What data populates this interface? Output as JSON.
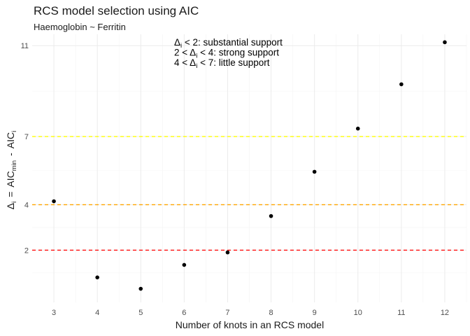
{
  "chart_data": {
    "type": "scatter",
    "title": "RCS model selection using AIC",
    "subtitle": "Haemoglobin ~ Ferritin",
    "xlabel": "Number of knots in an RCS model",
    "ylabel": {
      "delta": "Δ",
      "sub_i": "i",
      "equals": "=",
      "aic": "AIC",
      "sub_min": "min",
      "minus": "-",
      "sub_i2": "i"
    },
    "x_ticks": [
      "3",
      "4",
      "5",
      "6",
      "7",
      "8",
      "9",
      "10",
      "11",
      "12"
    ],
    "y_ticks": [
      "2",
      "4",
      "7",
      "11"
    ],
    "xlim": [
      2.5,
      12.5
    ],
    "ylim": [
      -0.3,
      11.5
    ],
    "grid": true,
    "points": [
      {
        "x": 3,
        "y": 4.15
      },
      {
        "x": 4,
        "y": 0.8
      },
      {
        "x": 5,
        "y": 0.3
      },
      {
        "x": 6,
        "y": 1.35
      },
      {
        "x": 7,
        "y": 1.9
      },
      {
        "x": 8,
        "y": 3.5
      },
      {
        "x": 9,
        "y": 5.45
      },
      {
        "x": 10,
        "y": 7.35
      },
      {
        "x": 11,
        "y": 9.3
      },
      {
        "x": 12,
        "y": 11.15
      }
    ],
    "reference_lines": [
      {
        "y": 2,
        "color": "#ff0000"
      },
      {
        "y": 4,
        "color": "#ffa500"
      },
      {
        "y": 7,
        "color": "#ffff00"
      }
    ],
    "annotations": [
      {
        "symbol": "Δ",
        "sub": "i",
        "text": " < 2: substantial support"
      },
      {
        "prefix": "2 < ",
        "symbol": "Δ",
        "sub": "i",
        "text": " < 4: strong support"
      },
      {
        "prefix": "4 < ",
        "symbol": "Δ",
        "sub": "i",
        "text": " < 7: little support"
      }
    ]
  }
}
